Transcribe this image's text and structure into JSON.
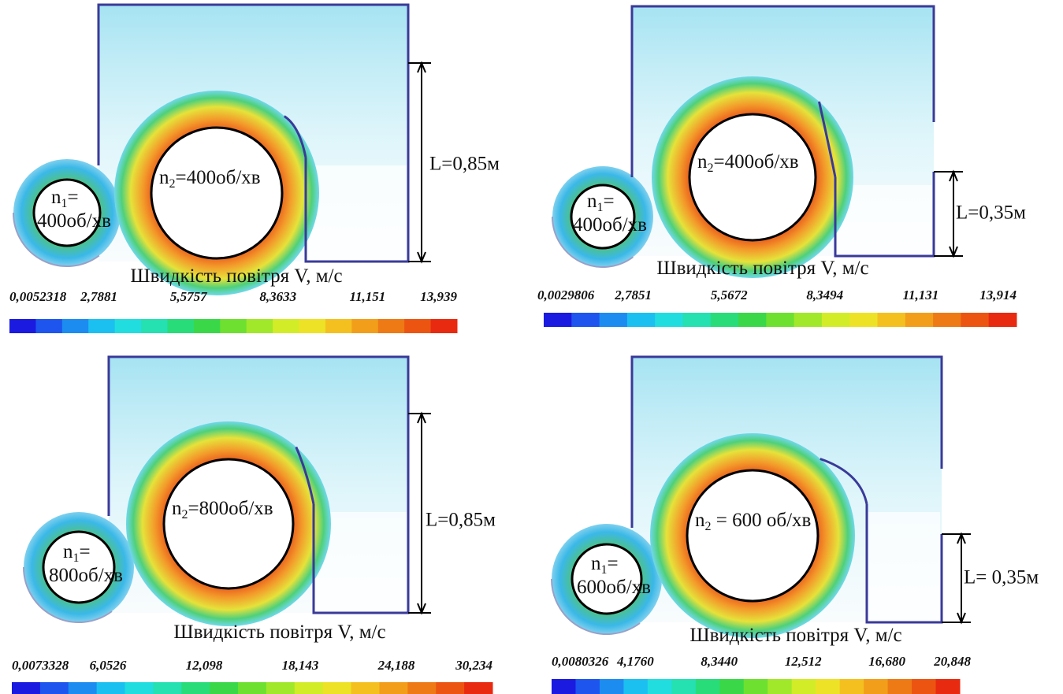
{
  "panels": [
    {
      "small_rotor": {
        "symbol": "n",
        "sub": "1",
        "eq": "=",
        "speed": "400об/хв"
      },
      "large_rotor": {
        "symbol": "n",
        "sub": "2",
        "text": "=400об/хв"
      },
      "length_label": "L=0,85м",
      "colorbar": {
        "title": "Швидкість повітря V, м/с",
        "ticks": [
          "0,0052318",
          "2,7881",
          "5,5757",
          "8,3633",
          "11,151",
          "13,939"
        ]
      }
    },
    {
      "small_rotor": {
        "symbol": "n",
        "sub": "1",
        "eq": "=",
        "speed": "400об/хв"
      },
      "large_rotor": {
        "symbol": "n",
        "sub": "2",
        "text": "=400об/хв"
      },
      "length_label": "L=0,35м",
      "colorbar": {
        "title": "Швидкість повітря V, м/с",
        "ticks": [
          "0,0029806",
          "2,7851",
          "5,5672",
          "8,3494",
          "11,131",
          "13,914"
        ]
      }
    },
    {
      "small_rotor": {
        "symbol": "n",
        "sub": "1",
        "eq": "=",
        "speed": "800об/хв"
      },
      "large_rotor": {
        "symbol": "n",
        "sub": "2",
        "text": "=800об/хв"
      },
      "length_label": "L=0,85м",
      "colorbar": {
        "title": "Швидкість повітря V, м/с",
        "ticks": [
          "0,0073328",
          "6,0526",
          "12,098",
          "18,143",
          "24,188",
          "30,234"
        ]
      }
    },
    {
      "small_rotor": {
        "symbol": "n",
        "sub": "1",
        "eq": "=",
        "speed": "600об/хв"
      },
      "large_rotor": {
        "symbol": "n",
        "sub": "2",
        "text": " = 600 об/хв"
      },
      "length_label": "L= 0,35м",
      "colorbar": {
        "title": "Швидкість повітря V, м/с",
        "ticks": [
          "0,0080326",
          "4,1760",
          "8,3440",
          "12,512",
          "16,680",
          "20,848"
        ]
      }
    }
  ]
}
